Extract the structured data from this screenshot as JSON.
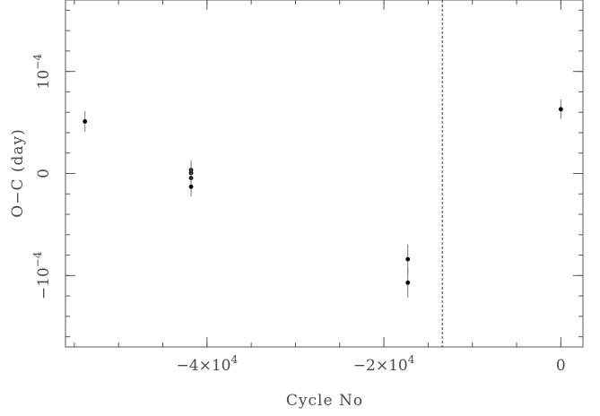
{
  "chart_data": {
    "type": "scatter",
    "title": "",
    "xlabel": "Cycle No",
    "ylabel": "O−C (day)",
    "xlim": [
      -56000,
      2500
    ],
    "ylim": [
      -0.00017,
      0.00017
    ],
    "x_ticks": [
      {
        "value": -40000,
        "label": "−4×10",
        "exp": "4"
      },
      {
        "value": -20000,
        "label": "−2×10",
        "exp": "4"
      },
      {
        "value": 0,
        "label": "0",
        "exp": ""
      }
    ],
    "y_ticks": [
      {
        "value": 0.0001,
        "label": "10",
        "exp": "−4"
      },
      {
        "value": 0,
        "label": "0",
        "exp": ""
      },
      {
        "value": -0.0001,
        "label": "−10",
        "exp": "−4"
      }
    ],
    "x_minor_step": 5000,
    "y_minor_step": 2e-05,
    "vertical_line": {
      "x": -13400,
      "style": "dashed"
    },
    "grid": false,
    "series": [
      {
        "points": [
          {
            "x": -53800,
            "y": 5.1e-05,
            "err": 1e-05
          },
          {
            "x": -41800,
            "y": 3.5e-06,
            "err": 9.5e-06
          },
          {
            "x": -41800,
            "y": 5e-07,
            "err": 9.5e-06
          },
          {
            "x": -41800,
            "y": -4.5e-06,
            "err": 9.5e-06
          },
          {
            "x": -41800,
            "y": -1.3e-05,
            "err": 9.5e-06
          },
          {
            "x": -17300,
            "y": -8.4e-05,
            "err": 1.45e-05
          },
          {
            "x": -17300,
            "y": -0.000107,
            "err": 1.45e-05
          },
          {
            "x": 0,
            "y": 6.3e-05,
            "err": 9.5e-06
          }
        ]
      }
    ]
  }
}
